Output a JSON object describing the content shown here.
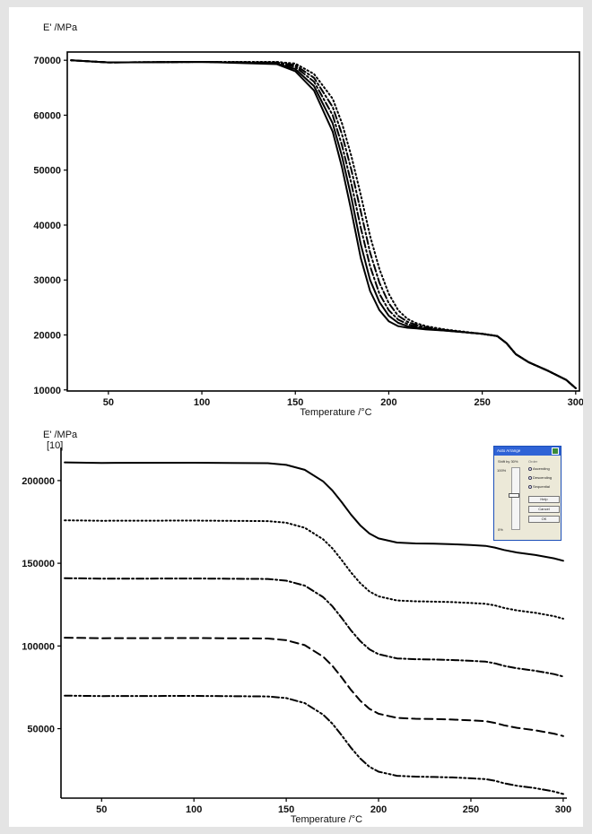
{
  "chart_data": [
    {
      "type": "line",
      "title": "",
      "ylabel": "E' /MPa",
      "xlabel": "Temperature /°C",
      "xlim": [
        28,
        302
      ],
      "ylim": [
        9800,
        71500
      ],
      "x_ticks": [
        50,
        100,
        150,
        200,
        250,
        300
      ],
      "x_tick_labels": [
        "50",
        "100",
        "150",
        "200",
        "250",
        "300"
      ],
      "y_ticks": [
        10000,
        20000,
        30000,
        40000,
        50000,
        60000,
        70000
      ],
      "y_tick_labels": [
        "10000",
        "20000",
        "30000",
        "40000",
        "50000",
        "60000",
        "70000"
      ],
      "grid": false,
      "series": [
        {
          "style": "solid",
          "x": [
            30,
            50,
            100,
            140,
            150,
            160,
            170,
            175,
            180,
            185,
            190,
            195,
            200,
            205,
            210,
            215,
            220,
            230,
            240,
            250,
            258,
            263,
            268,
            275,
            285,
            295,
            300
          ],
          "y": [
            70000,
            69600,
            69700,
            69300,
            68000,
            64500,
            57000,
            50500,
            42500,
            34000,
            28000,
            24500,
            22500,
            21600,
            21300,
            21200,
            21000,
            20800,
            20500,
            20200,
            19800,
            18500,
            16500,
            15000,
            13500,
            11800,
            10300
          ]
        },
        {
          "style": "solid",
          "x": [
            30,
            50,
            100,
            140,
            150,
            160,
            170,
            175,
            180,
            185,
            190,
            195,
            200,
            205,
            210,
            215,
            220,
            230,
            240,
            250,
            258,
            263,
            268,
            275,
            285,
            295,
            300
          ],
          "y": [
            70000,
            69600,
            69700,
            69400,
            68400,
            65300,
            58500,
            52500,
            45000,
            36500,
            30000,
            26000,
            23500,
            22200,
            21600,
            21300,
            21100,
            20800,
            20500,
            20200,
            19800,
            18500,
            16500,
            15000,
            13500,
            11800,
            10300
          ]
        },
        {
          "style": "dash-dot",
          "x": [
            30,
            50,
            100,
            140,
            150,
            160,
            170,
            175,
            180,
            185,
            190,
            195,
            200,
            205,
            210,
            215,
            220,
            230,
            240,
            250,
            258,
            263,
            268,
            275,
            285,
            295,
            300
          ],
          "y": [
            70000,
            69600,
            69700,
            69500,
            68800,
            66100,
            60000,
            54500,
            47500,
            39500,
            32500,
            27500,
            24500,
            22800,
            22000,
            21500,
            21200,
            20900,
            20500,
            20200,
            19800,
            18500,
            16500,
            15000,
            13500,
            11800,
            10300
          ]
        },
        {
          "style": "dash-dot",
          "x": [
            30,
            50,
            100,
            140,
            150,
            160,
            170,
            175,
            180,
            185,
            190,
            195,
            200,
            205,
            210,
            215,
            220,
            230,
            240,
            250,
            258,
            263,
            268,
            275,
            285,
            295,
            300
          ],
          "y": [
            70000,
            69600,
            69700,
            69600,
            69100,
            66800,
            61500,
            56500,
            50000,
            42500,
            35000,
            29500,
            25800,
            23500,
            22400,
            21800,
            21400,
            20900,
            20500,
            20200,
            19800,
            18500,
            16500,
            15000,
            13500,
            11800,
            10300
          ]
        },
        {
          "style": "dotted",
          "x": [
            30,
            50,
            100,
            140,
            150,
            160,
            170,
            175,
            180,
            185,
            190,
            195,
            200,
            205,
            210,
            215,
            220,
            230,
            240,
            250,
            258,
            263,
            268,
            275,
            285,
            295,
            300
          ],
          "y": [
            70000,
            69600,
            69700,
            69700,
            69400,
            67500,
            63000,
            58500,
            52500,
            45500,
            38000,
            32000,
            27500,
            24500,
            22900,
            22100,
            21600,
            21000,
            20600,
            20200,
            19800,
            18500,
            16500,
            15000,
            13500,
            11800,
            10300
          ]
        }
      ]
    },
    {
      "type": "line",
      "title": "",
      "ylabel": "E' /MPa",
      "y_sublabel": "[10]",
      "xlabel": "Temperature /°C",
      "xlim": [
        28,
        302
      ],
      "ylim": [
        8000,
        220000
      ],
      "x_ticks": [
        50,
        100,
        150,
        200,
        250,
        300
      ],
      "x_tick_labels": [
        "50",
        "100",
        "150",
        "200",
        "250",
        "300"
      ],
      "y_ticks": [
        50000,
        100000,
        150000,
        200000
      ],
      "y_tick_labels": [
        "50000",
        "100000",
        "150000",
        "200000"
      ],
      "grid": false,
      "series": [
        {
          "style": "solid",
          "x": [
            30,
            50,
            100,
            140,
            150,
            160,
            170,
            175,
            180,
            185,
            190,
            195,
            200,
            210,
            220,
            230,
            240,
            250,
            258,
            263,
            268,
            275,
            285,
            295,
            300
          ],
          "y": [
            211000,
            210700,
            210800,
            210500,
            209500,
            206500,
            199500,
            194000,
            187000,
            179500,
            173000,
            168000,
            165000,
            162500,
            162000,
            161800,
            161500,
            161000,
            160500,
            159500,
            158000,
            156500,
            155000,
            153000,
            151500
          ]
        },
        {
          "style": "dotted",
          "x": [
            30,
            50,
            100,
            140,
            150,
            160,
            170,
            175,
            180,
            185,
            190,
            195,
            200,
            210,
            220,
            230,
            240,
            250,
            258,
            263,
            268,
            275,
            285,
            295,
            300
          ],
          "y": [
            176000,
            175700,
            175800,
            175500,
            174500,
            171500,
            164500,
            159000,
            152000,
            144500,
            138000,
            133000,
            130000,
            127500,
            127000,
            126800,
            126500,
            126000,
            125500,
            124500,
            123000,
            121500,
            120000,
            118000,
            116500
          ]
        },
        {
          "style": "dash-dot",
          "x": [
            30,
            50,
            100,
            140,
            150,
            160,
            170,
            175,
            180,
            185,
            190,
            195,
            200,
            210,
            220,
            230,
            240,
            250,
            258,
            263,
            268,
            275,
            285,
            295,
            300
          ],
          "y": [
            141000,
            140700,
            140800,
            140500,
            139500,
            136500,
            129500,
            124000,
            117000,
            109500,
            103000,
            98000,
            95000,
            92500,
            92000,
            91800,
            91500,
            91000,
            90500,
            89500,
            88000,
            86500,
            85000,
            83000,
            81500
          ]
        },
        {
          "style": "dashed",
          "x": [
            30,
            50,
            100,
            140,
            150,
            160,
            170,
            175,
            180,
            185,
            190,
            195,
            200,
            210,
            220,
            230,
            240,
            250,
            258,
            263,
            268,
            275,
            285,
            295,
            300
          ],
          "y": [
            105000,
            104700,
            104800,
            104500,
            103500,
            100500,
            93500,
            88000,
            81000,
            73500,
            67000,
            62000,
            59000,
            56500,
            56000,
            55800,
            55500,
            55000,
            54500,
            53500,
            52000,
            50500,
            49000,
            47000,
            45500
          ]
        },
        {
          "style": "dash-dot-dot",
          "x": [
            30,
            50,
            100,
            140,
            150,
            160,
            170,
            175,
            180,
            185,
            190,
            195,
            200,
            210,
            220,
            230,
            240,
            250,
            258,
            263,
            268,
            275,
            285,
            295,
            300
          ],
          "y": [
            70000,
            69700,
            69800,
            69500,
            68500,
            65500,
            58500,
            53000,
            46000,
            38500,
            32000,
            27000,
            24000,
            21500,
            21000,
            20800,
            20500,
            20000,
            19500,
            18500,
            17000,
            15500,
            14000,
            12000,
            10500
          ]
        }
      ]
    }
  ],
  "dialog": {
    "title": "Auto Arrange",
    "shift_label": "Shift by 30%",
    "order_label": "Order",
    "pct_top": "100%",
    "pct_bottom": "0%",
    "radios": [
      "Ascending",
      "Descending",
      "Sequential"
    ],
    "buttons": [
      "Help",
      "Cancel",
      "OK"
    ]
  }
}
